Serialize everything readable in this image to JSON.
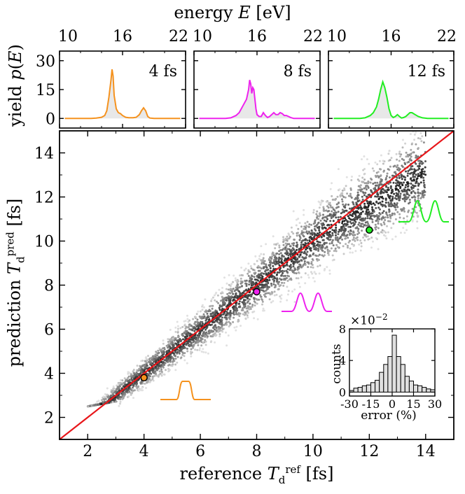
{
  "chart_data": [
    {
      "type": "line",
      "panel": "top",
      "xlabel_parts": [
        "energy ",
        "E",
        " [eV]"
      ],
      "ylabel_parts": [
        "yield ",
        "p",
        "(",
        "E",
        ")"
      ],
      "xlim": [
        10,
        22
      ],
      "xticks": [
        "10",
        "16",
        "22"
      ],
      "ylim": [
        -5,
        35
      ],
      "yticks": [
        "0",
        "15",
        "30"
      ],
      "fill_color": "#e8e8e8",
      "subplots": [
        {
          "label": "4 fs",
          "color": "#f5921e",
          "x": [
            10.5,
            11,
            12,
            13,
            13.5,
            14,
            14.3,
            14.5,
            14.7,
            14.9,
            15,
            15.1,
            15.2,
            15.4,
            15.6,
            15.8,
            16,
            16.3,
            16.6,
            17,
            17.3,
            17.6,
            17.8,
            18,
            18.2,
            18.4,
            18.6,
            19,
            19.5,
            20,
            20.5,
            21,
            21.5
          ],
          "values": [
            0,
            0,
            0,
            0,
            0.2,
            0.6,
            1.5,
            4,
            11,
            20,
            25.5,
            22,
            12,
            5,
            3,
            2.5,
            1.5,
            0.6,
            0.4,
            0.4,
            0.6,
            2,
            4,
            5.5,
            4,
            1,
            0.2,
            0,
            0,
            0,
            0,
            0,
            0
          ]
        },
        {
          "label": "8 fs",
          "color": "#ee22ee",
          "x": [
            10.5,
            11,
            12,
            13,
            13.5,
            14,
            14.3,
            14.6,
            14.8,
            15,
            15.2,
            15.3,
            15.4,
            15.5,
            15.6,
            15.7,
            15.8,
            15.9,
            16,
            16.2,
            16.4,
            16.6,
            16.8,
            17,
            17.2,
            17.4,
            17.6,
            17.8,
            18,
            18.2,
            18.4,
            18.6,
            18.8,
            19,
            19.2,
            19.5,
            20,
            20.5,
            21,
            21.5
          ],
          "values": [
            0,
            0,
            0,
            0,
            0.3,
            1.5,
            3,
            6,
            8,
            10,
            15,
            20,
            18,
            13,
            16,
            15,
            10,
            5,
            2,
            1,
            1,
            3,
            1.5,
            0.5,
            1,
            2,
            3,
            2,
            2,
            3,
            2.5,
            1.5,
            1.5,
            1,
            0.5,
            0,
            0,
            0,
            0,
            0
          ]
        },
        {
          "label": "12 fs",
          "color": "#22ee22",
          "x": [
            10.5,
            11,
            12,
            13,
            13.5,
            14,
            14.3,
            14.6,
            14.8,
            15,
            15.2,
            15.4,
            15.6,
            15.8,
            16,
            16.2,
            16.4,
            16.6,
            16.8,
            17,
            17.2,
            17.4,
            17.6,
            17.8,
            18,
            18.3,
            18.6,
            19,
            19.5,
            20,
            20.5,
            21,
            21.5
          ],
          "values": [
            0,
            0,
            0,
            0,
            0.3,
            1.5,
            3,
            6,
            10,
            15,
            19,
            16,
            11,
            5,
            1.5,
            0.5,
            1,
            2,
            1,
            0.2,
            0.5,
            1,
            2,
            3,
            3,
            2,
            1,
            0.3,
            0,
            0,
            0,
            0,
            0
          ]
        }
      ]
    },
    {
      "type": "scatter",
      "panel": "main",
      "xlabel_parts": [
        "reference ",
        "T",
        "d",
        "ref",
        " [fs]"
      ],
      "ylabel_parts": [
        "prediction ",
        "T",
        "d",
        "pred",
        " [fs]"
      ],
      "xlim": [
        1,
        15
      ],
      "ylim": [
        1,
        15
      ],
      "xticks": [
        "2",
        "4",
        "6",
        "8",
        "10",
        "12",
        "14"
      ],
      "yticks": [
        "2",
        "4",
        "6",
        "8",
        "10",
        "12",
        "14"
      ],
      "cloud_range": [
        2,
        14
      ],
      "diagonal_color": "#e8161a",
      "highlighted_points": [
        {
          "x": 4,
          "y": 3.8,
          "color": "#f5921e"
        },
        {
          "x": 8,
          "y": 7.7,
          "color": "#ee22ee"
        },
        {
          "x": 12,
          "y": 10.5,
          "color": "#22ee22"
        }
      ],
      "pulse_icons": [
        {
          "color": "#f5921e",
          "shape": "single"
        },
        {
          "color": "#ee22ee",
          "shape": "double"
        },
        {
          "color": "#22ee22",
          "shape": "double"
        }
      ]
    },
    {
      "type": "bar",
      "panel": "inset",
      "xlabel": "error (%)",
      "ylabel": "counts",
      "scale_label_base": "×10",
      "scale_label_exp": "−2",
      "xlim": [
        -30,
        30
      ],
      "ylim": [
        -0.5,
        8
      ],
      "xticks": [
        "-30",
        "-15",
        "0",
        "15",
        "30"
      ],
      "yticks": [
        "0",
        "4",
        "8"
      ],
      "bin_edges": [
        -30,
        -27,
        -24,
        -21,
        -18,
        -15,
        -12,
        -9,
        -6,
        -3,
        0,
        3,
        6,
        9,
        12,
        15,
        18,
        21,
        24,
        27,
        30
      ],
      "values": [
        0.2,
        0.5,
        0.6,
        0.8,
        0.9,
        1.2,
        1.5,
        2.5,
        3.5,
        4.5,
        7.2,
        4.5,
        3.5,
        2.0,
        1.4,
        0.9,
        0.8,
        0.6,
        0.4,
        0.3
      ]
    }
  ]
}
